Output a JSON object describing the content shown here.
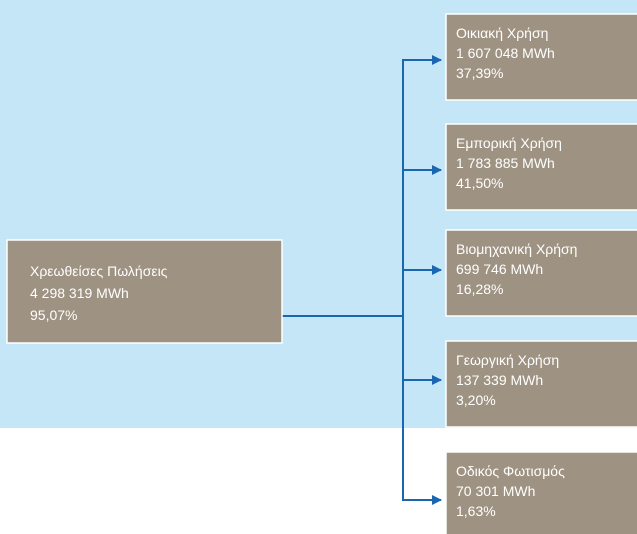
{
  "source": {
    "label": "Χρεωθείσες Πωλήσεις",
    "energy": "4 298 319 MWh",
    "share": "95,07%"
  },
  "targets": [
    {
      "label": "Οικιακή Χρήση",
      "energy": "1 607 048 MWh",
      "share": "37,39%"
    },
    {
      "label": "Εμπορική Χρήση",
      "energy": "1 783 885 MWh",
      "share": "41,50%"
    },
    {
      "label": "Βιομηχανική Χρήση",
      "energy": "699 746 MWh",
      "share": "16,28%"
    },
    {
      "label": "Γεωργική Χρήση",
      "energy": "137 339 MWh",
      "share": "3,20%"
    },
    {
      "label": "Οδικός Φωτισμός",
      "energy": "70 301 MWh",
      "share": "1,63%"
    }
  ]
}
